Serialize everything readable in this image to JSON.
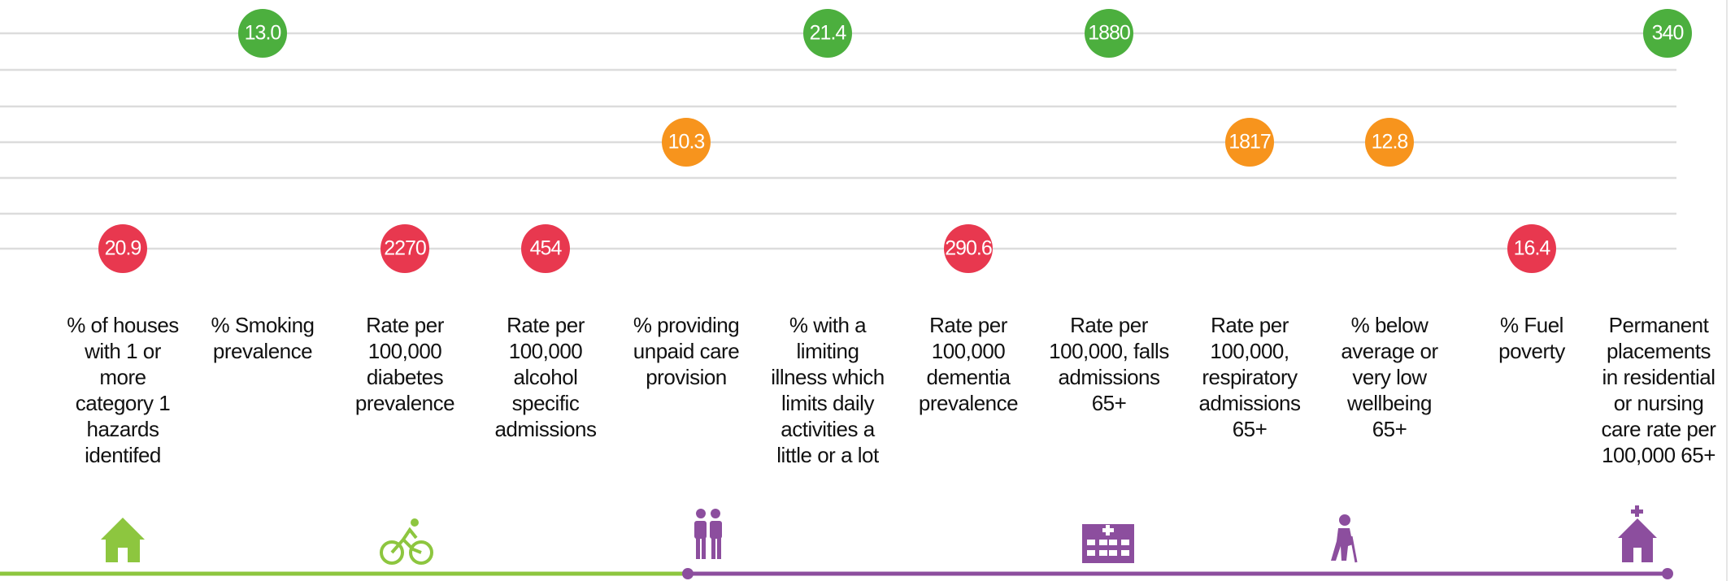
{
  "palette": [
    "#4caf3e",
    "#f7941d",
    "#e8384f"
  ],
  "indicators": [
    {
      "value": "20.9",
      "color": "#e8384f",
      "label": [
        "% of houses",
        "with 1 or",
        "more",
        "category 1",
        "hazards",
        "identifed"
      ]
    },
    {
      "value": "13.0",
      "color": "#4caf3e",
      "label": [
        "% Smoking",
        "prevalence"
      ]
    },
    {
      "value": "2270",
      "color": "#e8384f",
      "label": [
        "Rate per",
        "100,000",
        "diabetes",
        "prevalence"
      ]
    },
    {
      "value": "454",
      "color": "#e8384f",
      "label": [
        "Rate per",
        "100,000",
        "alcohol",
        "specific",
        "admissions"
      ]
    },
    {
      "value": "10.3",
      "color": "#f7941d",
      "label": [
        "% providing",
        "unpaid care",
        "provision"
      ]
    },
    {
      "value": "21.4",
      "color": "#4caf3e",
      "label": [
        "% with a",
        "limiting",
        "illness which",
        "limits daily",
        "activities a",
        "little or a lot"
      ]
    },
    {
      "value": "290.6",
      "color": "#e8384f",
      "label": [
        "Rate per",
        "100,000",
        "dementia",
        "prevalence"
      ]
    },
    {
      "value": "1880",
      "color": "#4caf3e",
      "label": [
        "Rate per",
        "100,000, falls",
        "admissions",
        "65+"
      ]
    },
    {
      "value": "1817",
      "color": "#f7941d",
      "label": [
        "Rate per",
        "100,000,",
        "respiratory",
        "admissions",
        "65+"
      ]
    },
    {
      "value": "12.8",
      "color": "#f7941d",
      "label": [
        "% below",
        "average or",
        "very low",
        "wellbeing",
        "65+"
      ]
    },
    {
      "value": "16.4",
      "color": "#e8384f",
      "label": [
        "% Fuel",
        "poverty"
      ]
    },
    {
      "value": "340",
      "color": "#4caf3e",
      "label": [
        "Permanent",
        "placements",
        "in residential",
        "or nursing",
        "care rate per",
        "100,000 65+"
      ]
    }
  ]
}
